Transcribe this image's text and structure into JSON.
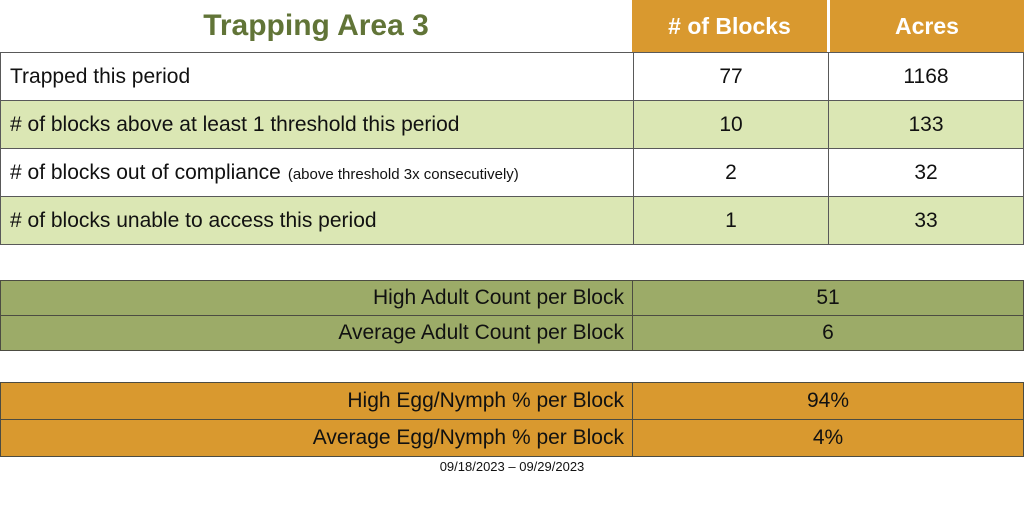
{
  "page": {
    "title": "Trapping Area 3",
    "date_range": "09/18/2023 – 09/29/2023"
  },
  "colors": {
    "orange": "#d9992f",
    "light_green": "#dbe7b4",
    "olive": "#9cab68",
    "title_green": "#617437",
    "border": "#595959",
    "border_dark": "#4c4c42"
  },
  "main_table": {
    "columns": [
      "# of Blocks",
      "Acres"
    ],
    "rows": [
      {
        "label": "Trapped this period",
        "note": "",
        "blocks": "77",
        "acres": "1168"
      },
      {
        "label": "# of blocks above at least 1 threshold this period",
        "note": "",
        "blocks": "10",
        "acres": "133"
      },
      {
        "label": "# of blocks out of compliance",
        "note": "(above threshold 3x consecutively)",
        "blocks": "2",
        "acres": "32"
      },
      {
        "label": "# of blocks unable to access this period",
        "note": "",
        "blocks": "1",
        "acres": "33"
      }
    ]
  },
  "adult_table": {
    "rows": [
      {
        "label": "High Adult Count per Block",
        "value": "51"
      },
      {
        "label": "Average Adult Count per Block",
        "value": "6"
      }
    ]
  },
  "egg_table": {
    "rows": [
      {
        "label": "High Egg/Nymph % per Block",
        "value": "94%"
      },
      {
        "label": "Average Egg/Nymph % per Block",
        "value": "4%"
      }
    ]
  }
}
